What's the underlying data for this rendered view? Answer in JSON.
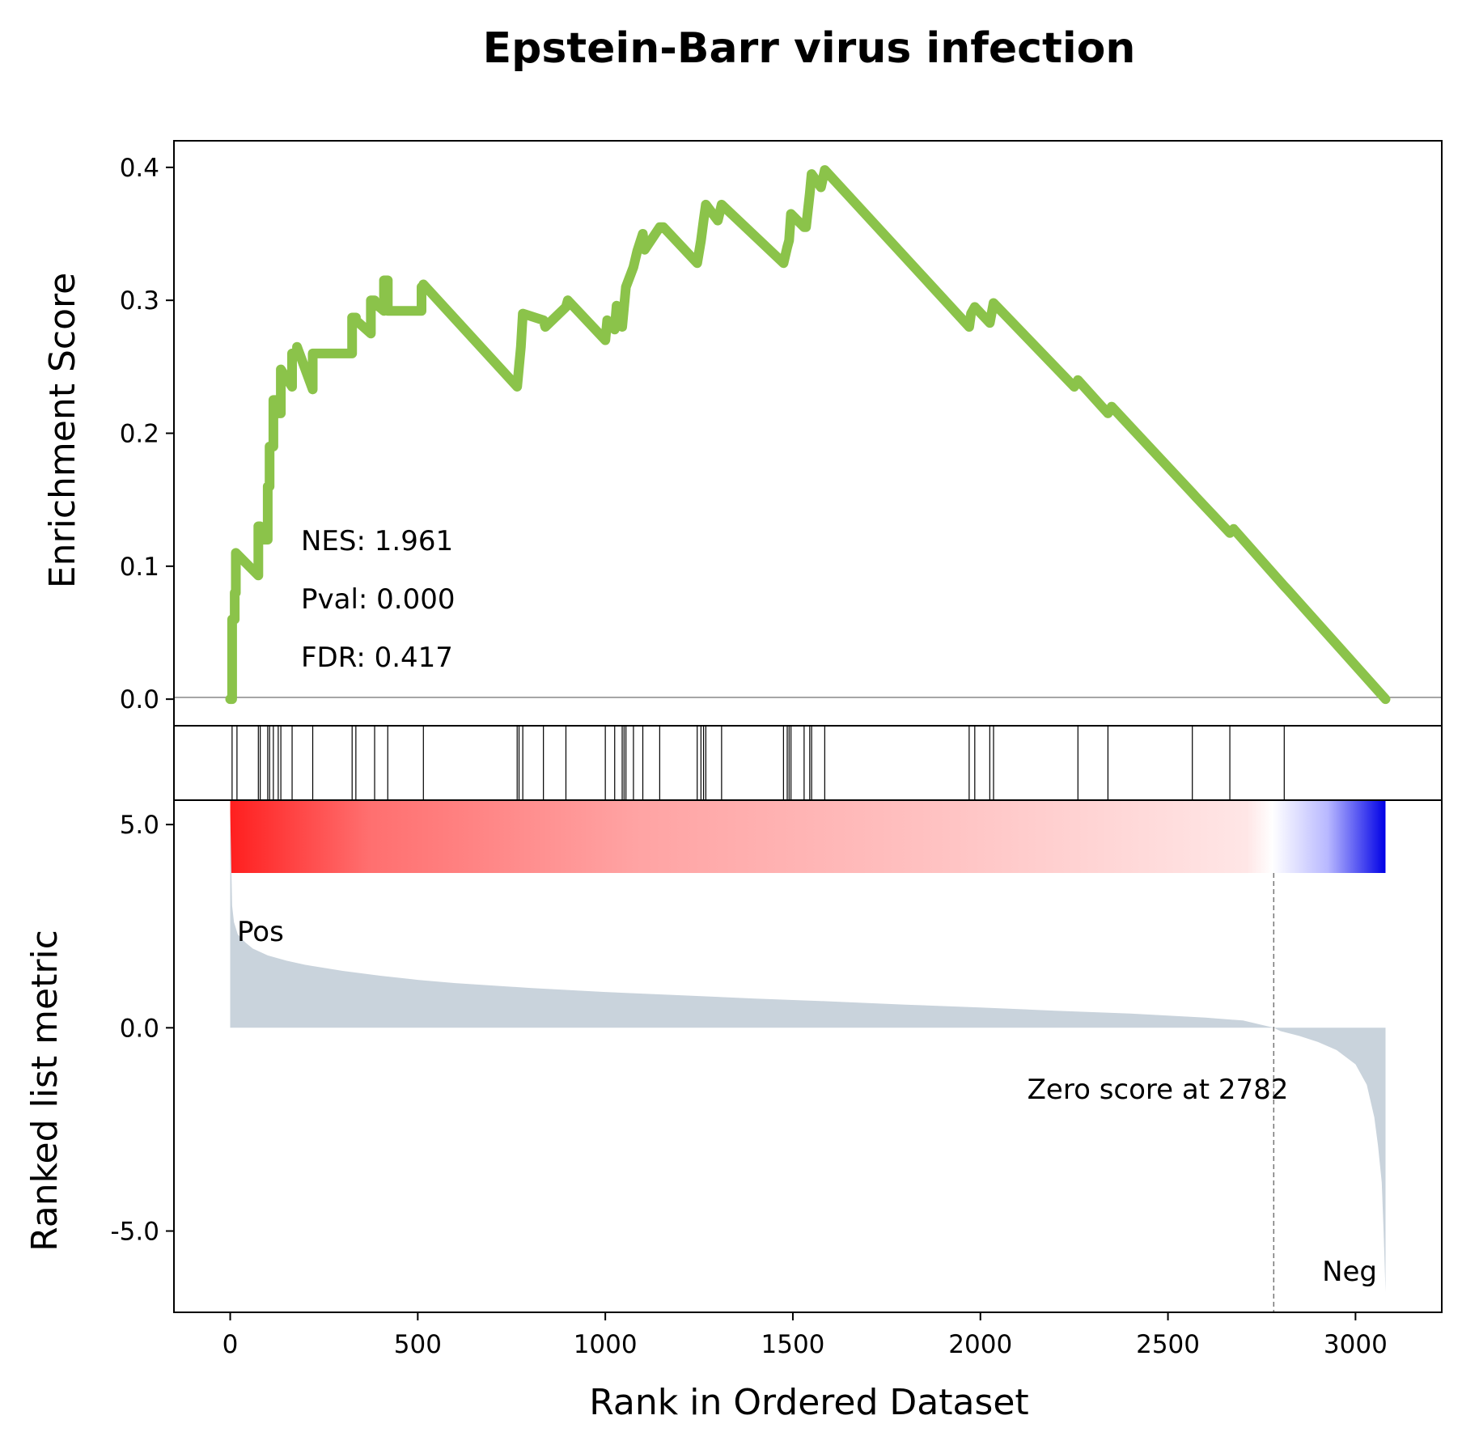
{
  "chart_data": {
    "type": "line",
    "title": "Epstein-Barr virus infection",
    "xlabel": "Rank in Ordered Dataset",
    "es_panel": {
      "ylabel": "Enrichment Score",
      "ylim": [
        -0.02,
        0.42
      ],
      "yticks": [
        0.0,
        0.1,
        0.2,
        0.3,
        0.4
      ],
      "ytick_labels": [
        "0.0",
        "0.1",
        "0.2",
        "0.3",
        "0.4"
      ],
      "line_color": "#8bc34a",
      "stats": {
        "nes": "NES: 1.961",
        "pval": "Pval: 0.000",
        "fdr": "FDR: 0.417"
      },
      "series": [
        {
          "x": [
            0,
            5,
            5,
            12,
            12,
            15,
            15,
            75,
            75,
            80,
            80,
            100,
            100,
            105,
            105,
            115,
            115,
            128,
            128,
            135,
            135,
            165,
            165,
            178,
            178,
            220,
            220,
            325,
            325,
            335,
            335,
            375,
            375,
            385,
            385,
            410,
            410,
            420,
            420,
            510,
            510,
            515,
            515,
            765,
            765,
            770,
            770,
            775,
            775,
            780,
            780,
            835,
            835,
            840,
            840,
            895,
            895,
            900,
            900,
            1000,
            1000,
            1005,
            1005,
            1025,
            1025,
            1030,
            1030,
            1045,
            1045,
            1055,
            1055,
            1075,
            1075,
            1085,
            1085,
            1100,
            1100,
            1105,
            1105,
            1145,
            1145,
            1155,
            1155,
            1245,
            1245,
            1255,
            1255,
            1262,
            1262,
            1268,
            1268,
            1300,
            1300,
            1310,
            1310,
            1475,
            1475,
            1485,
            1485,
            1490,
            1490,
            1495,
            1495,
            1530,
            1530,
            1535,
            1535,
            1545,
            1545,
            1550,
            1550,
            1575,
            1575,
            1585,
            1585,
            1970,
            1970,
            1975,
            1975,
            1985,
            1985,
            2025,
            2025,
            2035,
            2035,
            2250,
            2250,
            2260,
            2260,
            2340,
            2340,
            2350,
            2350,
            2565,
            2565,
            2575,
            2575,
            2665,
            2665,
            2675,
            2675,
            2810,
            2810,
            2820,
            2820,
            3080
          ],
          "y": [
            0.0,
            0.0,
            0.06,
            0.06,
            0.08,
            0.08,
            0.11,
            0.093,
            0.13,
            0.13,
            0.12,
            0.12,
            0.16,
            0.16,
            0.19,
            0.19,
            0.225,
            0.225,
            0.215,
            0.215,
            0.248,
            0.235,
            0.26,
            0.26,
            0.265,
            0.233,
            0.26,
            0.26,
            0.287,
            0.287,
            0.285,
            0.275,
            0.3,
            0.3,
            0.298,
            0.292,
            0.315,
            0.315,
            0.292,
            0.292,
            0.31,
            0.31,
            0.312,
            0.235,
            0.235,
            0.25,
            0.25,
            0.265,
            0.265,
            0.29,
            0.29,
            0.285,
            0.285,
            0.28,
            0.28,
            0.295,
            0.295,
            0.3,
            0.3,
            0.27,
            0.27,
            0.285,
            0.285,
            0.278,
            0.278,
            0.296,
            0.296,
            0.28,
            0.28,
            0.31,
            0.31,
            0.325,
            0.325,
            0.337,
            0.337,
            0.35,
            0.35,
            0.338,
            0.338,
            0.355,
            0.355,
            0.355,
            0.355,
            0.328,
            0.328,
            0.345,
            0.345,
            0.36,
            0.36,
            0.372,
            0.372,
            0.36,
            0.36,
            0.372,
            0.372,
            0.328,
            0.328,
            0.34,
            0.34,
            0.345,
            0.345,
            0.365,
            0.365,
            0.355,
            0.355,
            0.355,
            0.355,
            0.38,
            0.38,
            0.395,
            0.395,
            0.385,
            0.385,
            0.398,
            0.398,
            0.28,
            0.28,
            0.29,
            0.29,
            0.295,
            0.295,
            0.283,
            0.283,
            0.298,
            0.298,
            0.235,
            0.235,
            0.24,
            0.24,
            0.215,
            0.215,
            0.22,
            0.22,
            0.155,
            0.155,
            0.152,
            0.152,
            0.125,
            0.125,
            0.128,
            0.128,
            0.085,
            0.085,
            0.082,
            0.082,
            0.0
          ]
        }
      ]
    },
    "hits": [
      5,
      18,
      75,
      80,
      100,
      105,
      115,
      128,
      135,
      165,
      220,
      325,
      335,
      385,
      420,
      515,
      765,
      770,
      780,
      835,
      895,
      1000,
      1025,
      1045,
      1050,
      1055,
      1075,
      1100,
      1145,
      1245,
      1255,
      1262,
      1268,
      1310,
      1475,
      1485,
      1490,
      1495,
      1530,
      1545,
      1550,
      1585,
      1970,
      1985,
      2025,
      2035,
      2260,
      2340,
      2565,
      2665,
      2810
    ],
    "metric_panel": {
      "ylabel": "Ranked list metric",
      "ylim": [
        -7.0,
        5.6
      ],
      "yticks": [
        5.0,
        0.0,
        -5.0
      ],
      "ytick_labels": [
        "5.0",
        "0.0",
        "-5.0"
      ],
      "fill_color": "#c9d3dc",
      "pos_label": "Pos",
      "pos_color": "#ff0000",
      "neg_label": "Neg",
      "neg_color": "#0000ff",
      "zero_label": "Zero score at 2782",
      "zero_x": 2782,
      "profile": {
        "x": [
          0,
          5,
          10,
          20,
          40,
          60,
          100,
          150,
          200,
          300,
          400,
          500,
          600,
          800,
          1000,
          1200,
          1400,
          1600,
          1800,
          2000,
          2200,
          2400,
          2600,
          2700,
          2782,
          2800,
          2850,
          2900,
          2950,
          3000,
          3030,
          3050,
          3060,
          3070,
          3075,
          3080
        ],
        "y": [
          5.3,
          3.0,
          2.6,
          2.3,
          2.1,
          1.95,
          1.78,
          1.65,
          1.55,
          1.4,
          1.28,
          1.18,
          1.1,
          0.98,
          0.88,
          0.8,
          0.72,
          0.65,
          0.57,
          0.5,
          0.42,
          0.35,
          0.25,
          0.18,
          0.0,
          -0.08,
          -0.2,
          -0.35,
          -0.55,
          -0.9,
          -1.4,
          -2.2,
          -2.9,
          -3.8,
          -5.0,
          -6.5
        ]
      }
    },
    "x_axis": {
      "xlim": [
        -150,
        3230
      ],
      "xticks": [
        0,
        500,
        1000,
        1500,
        2000,
        2500,
        3000
      ],
      "xtick_labels": [
        "0",
        "500",
        "1000",
        "1500",
        "2000",
        "2500",
        "3000"
      ]
    }
  }
}
